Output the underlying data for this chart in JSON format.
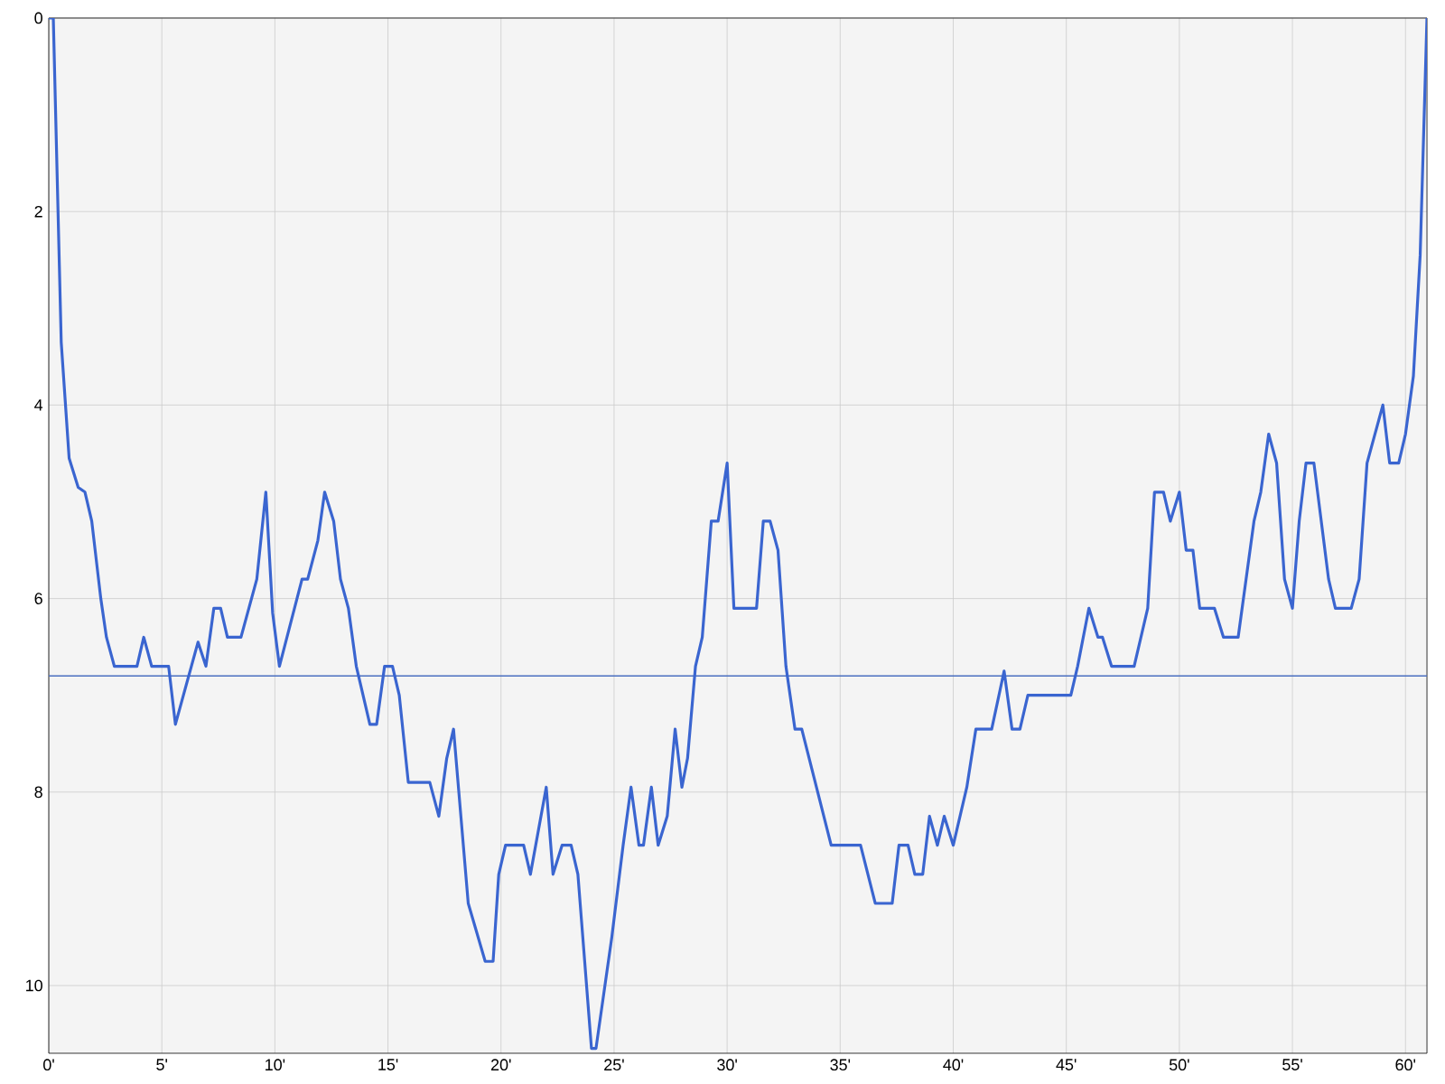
{
  "chart_data": {
    "type": "line",
    "x": [
      0,
      0.2,
      0.55,
      0.9,
      1.3,
      1.6,
      1.9,
      2.3,
      2.55,
      2.9,
      3.9,
      4.2,
      4.55,
      5.3,
      5.6,
      6.6,
      6.95,
      7.3,
      7.6,
      7.9,
      8.5,
      9.2,
      9.6,
      9.9,
      10.2,
      11.2,
      11.45,
      11.9,
      12.2,
      12.6,
      12.9,
      13.25,
      13.6,
      14.2,
      14.5,
      14.85,
      15.2,
      15.5,
      15.9,
      16.85,
      17.25,
      17.6,
      17.9,
      18.55,
      19.3,
      19.65,
      19.9,
      20.2,
      21.0,
      21.3,
      22.0,
      22.3,
      22.7,
      23.1,
      23.4,
      24.0,
      24.2,
      24.9,
      25.4,
      25.75,
      26.1,
      26.3,
      26.65,
      26.95,
      27.35,
      27.7,
      28.0,
      28.25,
      28.6,
      28.9,
      29.3,
      29.6,
      30.0,
      30.3,
      31.3,
      31.6,
      31.9,
      32.25,
      32.6,
      33.0,
      33.3,
      34.6,
      35.9,
      36.55,
      37.3,
      37.6,
      38.0,
      38.3,
      38.65,
      38.95,
      39.3,
      39.6,
      40.0,
      40.6,
      41.0,
      41.7,
      42.25,
      42.6,
      42.95,
      43.3,
      45.2,
      45.5,
      46.0,
      46.4,
      46.6,
      47.0,
      48.0,
      48.6,
      48.9,
      49.3,
      49.6,
      50.0,
      50.3,
      50.6,
      50.9,
      51.55,
      51.95,
      52.6,
      53.3,
      53.6,
      53.95,
      54.3,
      54.65,
      55.0,
      55.3,
      55.6,
      55.95,
      56.6,
      56.9,
      57.6,
      57.95,
      58.3,
      59.0,
      59.3,
      59.7,
      60.0,
      60.35,
      60.65,
      60.95
    ],
    "series": [
      {
        "color": "#3a65d0",
        "values": [
          0,
          0,
          3.35,
          4.55,
          4.85,
          4.9,
          5.2,
          6.0,
          6.4,
          6.7,
          6.7,
          6.4,
          6.7,
          6.7,
          7.3,
          6.45,
          6.7,
          6.1,
          6.1,
          6.4,
          6.4,
          5.8,
          4.9,
          6.15,
          6.7,
          5.8,
          5.8,
          5.4,
          4.9,
          5.2,
          5.8,
          6.1,
          6.7,
          7.3,
          7.3,
          6.7,
          6.7,
          7.0,
          7.9,
          7.9,
          8.25,
          7.65,
          7.35,
          9.15,
          9.75,
          9.75,
          8.85,
          8.55,
          8.55,
          8.85,
          7.95,
          8.85,
          8.55,
          8.55,
          8.85,
          10.65,
          10.65,
          9.5,
          8.55,
          7.95,
          8.55,
          8.55,
          7.95,
          8.55,
          8.25,
          7.35,
          7.95,
          7.65,
          6.7,
          6.4,
          5.2,
          5.2,
          4.6,
          6.1,
          6.1,
          5.2,
          5.2,
          5.5,
          6.7,
          7.35,
          7.35,
          8.55,
          8.55,
          9.15,
          9.15,
          8.55,
          8.55,
          8.85,
          8.85,
          8.25,
          8.55,
          8.25,
          8.55,
          7.95,
          7.35,
          7.35,
          6.75,
          7.35,
          7.35,
          7.0,
          7.0,
          6.7,
          6.1,
          6.4,
          6.4,
          6.7,
          6.7,
          6.1,
          4.9,
          4.9,
          5.2,
          4.9,
          5.5,
          5.5,
          6.1,
          6.1,
          6.4,
          6.4,
          5.2,
          4.9,
          4.3,
          4.6,
          5.8,
          6.1,
          5.2,
          4.6,
          4.6,
          5.8,
          6.1,
          6.1,
          5.8,
          4.6,
          4.0,
          4.6,
          4.6,
          4.3,
          3.7,
          2.45,
          0
        ]
      }
    ],
    "xlim": [
      0,
      60.95
    ],
    "ylim": [
      10.7,
      0
    ],
    "xticks": [
      {
        "value": 0,
        "label": "0'"
      },
      {
        "value": 5,
        "label": "5'"
      },
      {
        "value": 10,
        "label": "10'"
      },
      {
        "value": 15,
        "label": "15'"
      },
      {
        "value": 20,
        "label": "20'"
      },
      {
        "value": 25,
        "label": "25'"
      },
      {
        "value": 30,
        "label": "30'"
      },
      {
        "value": 35,
        "label": "35'"
      },
      {
        "value": 40,
        "label": "40'"
      },
      {
        "value": 45,
        "label": "45'"
      },
      {
        "value": 50,
        "label": "50'"
      },
      {
        "value": 55,
        "label": "55'"
      },
      {
        "value": 60,
        "label": "60'"
      }
    ],
    "yticks": [
      0,
      2,
      4,
      6,
      8,
      10
    ],
    "grid": true,
    "marker": "none",
    "line_style": "solid",
    "ref_lines": [
      {
        "axis": "y",
        "value": 6.8,
        "color": "#4a6fc0"
      }
    ]
  }
}
